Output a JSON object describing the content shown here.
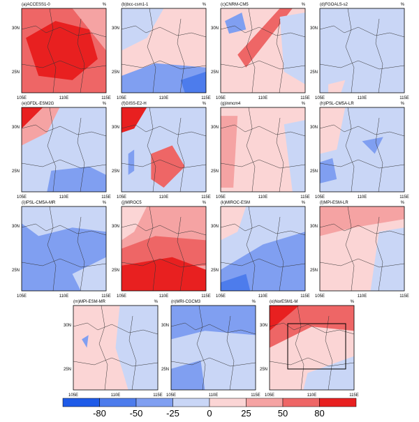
{
  "panels": [
    {
      "label": "(a)ACCESS1-0"
    },
    {
      "label": "(b)bcc-csm1-1"
    },
    {
      "label": "(c)CNRM-CM5"
    },
    {
      "label": "(d)FGOALS-s2"
    },
    {
      "label": "(e)GFDL-ESM2G"
    },
    {
      "label": "(f)GISS-E2-H"
    },
    {
      "label": "(g)inmcm4"
    },
    {
      "label": "(h)IPSL-CM5A-LR"
    },
    {
      "label": "(i)IPSL-CM5A-MR"
    },
    {
      "label": "(j)MIROC5"
    },
    {
      "label": "(k)MIROC-ESM"
    },
    {
      "label": "(l)MPI-ESM-LR"
    },
    {
      "label": "(m)MPI-ESM-MR"
    },
    {
      "label": "(n)MRI-CGCM3"
    },
    {
      "label": "(o)NorESM1-M"
    }
  ],
  "axes": {
    "unit": "%",
    "yticks": [
      "30N",
      "25N"
    ],
    "xticks": [
      "105E",
      "110E",
      "115E"
    ]
  },
  "colorbar": {
    "ticks": [
      -80,
      -50,
      -25,
      0,
      25,
      50,
      80
    ],
    "colors": [
      "#1f5be8",
      "#4d7cec",
      "#809ff1",
      "#c9d6f6",
      "#fbd5d5",
      "#f5a3a3",
      "#ee6666",
      "#e82020"
    ]
  }
}
